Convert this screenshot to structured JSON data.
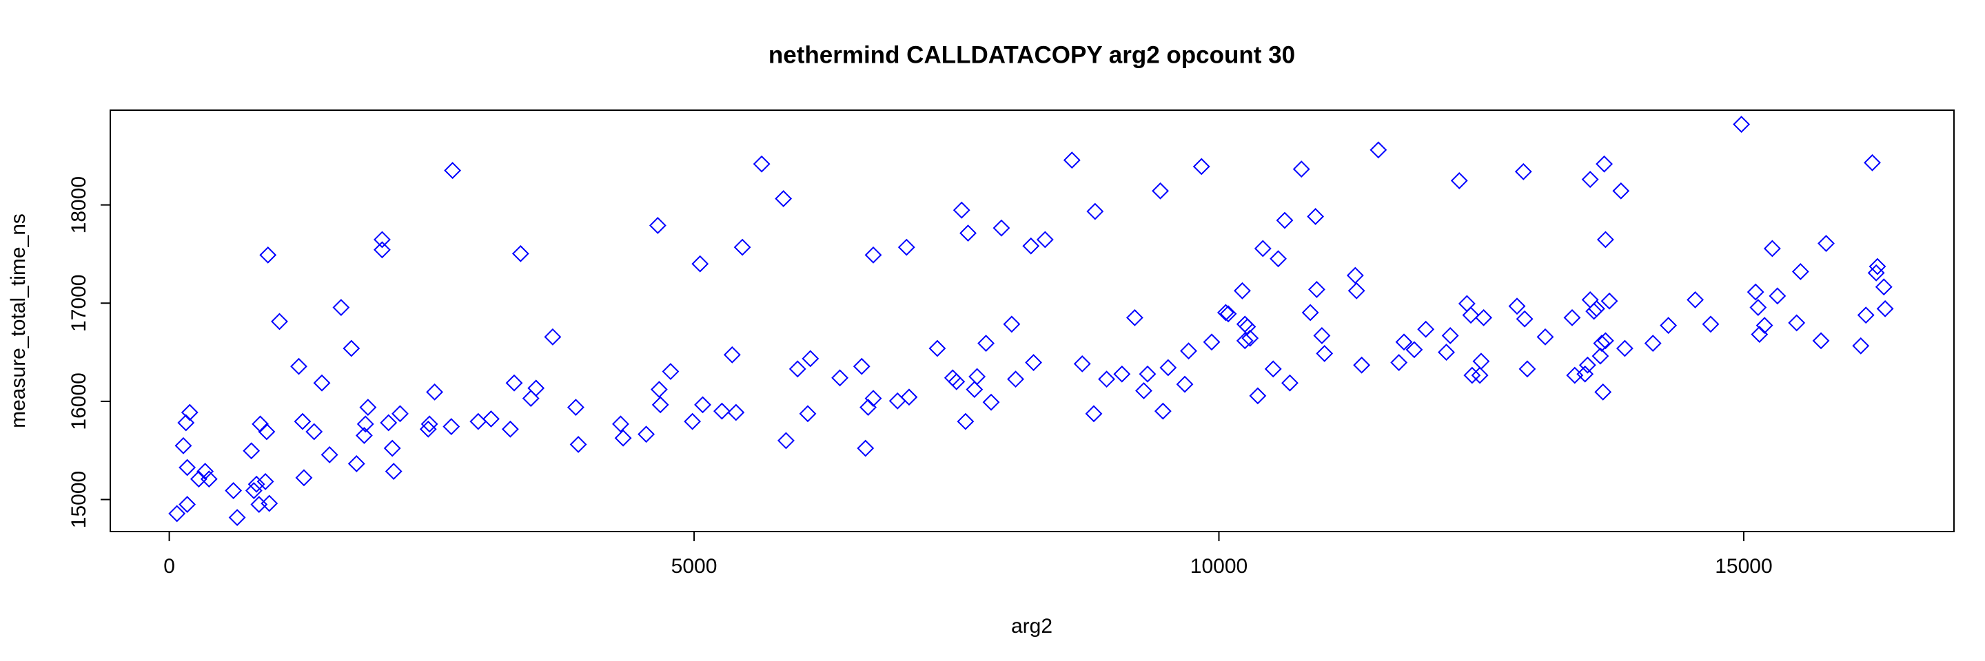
{
  "chart_data": {
    "type": "scatter",
    "title": "nethermind CALLDATACOPY arg2 opcount 30",
    "x_label": "arg2",
    "y_label": "measure_total_time_ns",
    "color": "#0000ff",
    "xlim": [
      -562,
      17003
    ],
    "ylim": [
      14674,
      18965
    ],
    "xticks": [
      0,
      5000,
      10000,
      15000
    ],
    "yticks": [
      15000,
      16000,
      17000,
      18000
    ],
    "x": [
      73,
      134,
      159,
      195,
      171,
      171,
      281,
      342,
      379,
      611,
      647,
      782,
      806,
      831,
      855,
      867,
      916,
      928,
      953,
      940,
      1050,
      1234,
      1270,
      1283,
      1380,
      1454,
      1527,
      1637,
      1735,
      1784,
      1857,
      1869,
      1893,
      2028,
      2028,
      2089,
      2125,
      2138,
      2199,
      2467,
      2479,
      2528,
      2687,
      2699,
      2943,
      3066,
      3249,
      3286,
      3347,
      3445,
      3494,
      3653,
      3873,
      3897,
      4300,
      4324,
      4544,
      4654,
      4667,
      4679,
      4776,
      4984,
      5057,
      5082,
      5265,
      5399,
      5363,
      5460,
      5644,
      5851,
      5876,
      5986,
      6083,
      6108,
      6389,
      6597,
      6633,
      6658,
      6707,
      6707,
      6938,
      7024,
      7048,
      7317,
      7464,
      7500,
      7549,
      7586,
      7610,
      7671,
      7696,
      7781,
      7830,
      7928,
      8026,
      8063,
      8209,
      8234,
      8344,
      8600,
      8698,
      8808,
      8820,
      8930,
      9076,
      9198,
      9284,
      9320,
      9442,
      9467,
      9516,
      9675,
      9711,
      9834,
      9931,
      10065,
      10089,
      10223,
      10248,
      10248,
      10272,
      10297,
      10370,
      10419,
      10517,
      10565,
      10627,
      10676,
      10786,
      10871,
      10920,
      10932,
      10981,
      11006,
      11299,
      11311,
      11360,
      11519,
      11715,
      11763,
      11861,
      11971,
      12167,
      12204,
      12290,
      12363,
      12400,
      12412,
      12486,
      12498,
      12522,
      12840,
      12901,
      12913,
      12938,
      13109,
      13365,
      13390,
      13488,
      13512,
      13537,
      13537,
      13573,
      13598,
      13634,
      13647,
      13659,
      13671,
      13683,
      13683,
      13720,
      13830,
      13867,
      14135,
      14282,
      14538,
      14685,
      14978,
      15113,
      15137,
      15150,
      15198,
      15272,
      15321,
      15504,
      15541,
      15736,
      15785,
      16115,
      16164,
      16225,
      16262,
      16274,
      16335,
      16347
    ],
    "values": [
      14857,
      15548,
      15782,
      15887,
      14950,
      15326,
      15209,
      15287,
      15209,
      15091,
      14817,
      15496,
      15091,
      15156,
      14950,
      15769,
      15183,
      15691,
      14961,
      17490,
      16813,
      16356,
      15795,
      15222,
      15691,
      16187,
      15456,
      16956,
      16539,
      15365,
      15652,
      15769,
      15939,
      17647,
      17543,
      15782,
      15522,
      15287,
      15874,
      15717,
      15769,
      16095,
      15743,
      18351,
      15795,
      15821,
      15717,
      16187,
      17504,
      16030,
      16134,
      16656,
      15939,
      15561,
      15769,
      15626,
      15665,
      17791,
      16121,
      15965,
      16304,
      15795,
      17400,
      15965,
      15900,
      15887,
      16474,
      17569,
      18417,
      18064,
      15600,
      16330,
      15874,
      16435,
      16239,
      16356,
      15522,
      15939,
      16030,
      17490,
      16004,
      17569,
      16043,
      16539,
      16239,
      16200,
      17947,
      15795,
      17713,
      16121,
      16252,
      16591,
      15991,
      17765,
      16786,
      16226,
      17582,
      16395,
      17647,
      18456,
      16382,
      15874,
      17934,
      16226,
      16278,
      16852,
      16108,
      16278,
      18143,
      15900,
      16343,
      16174,
      16513,
      18391,
      16604,
      16904,
      16891,
      17126,
      16617,
      16786,
      16760,
      16643,
      16056,
      17556,
      16330,
      17452,
      17843,
      16187,
      18365,
      16904,
      17882,
      17139,
      16669,
      16487,
      17282,
      17126,
      16369,
      18560,
      16395,
      16604,
      16526,
      16734,
      16500,
      16669,
      18247,
      16995,
      16878,
      16265,
      16265,
      16408,
      16852,
      16969,
      18339,
      16839,
      16330,
      16656,
      16852,
      16265,
      16278,
      16369,
      17034,
      18260,
      16917,
      16943,
      16461,
      16591,
      16095,
      18417,
      17647,
      16617,
      17021,
      18143,
      16539,
      16591,
      16773,
      17034,
      16786,
      18821,
      17113,
      16956,
      16682,
      16773,
      17556,
      17073,
      16799,
      17321,
      16617,
      17608,
      16565,
      16878,
      18430,
      17308,
      17373,
      17165,
      16943
    ]
  }
}
